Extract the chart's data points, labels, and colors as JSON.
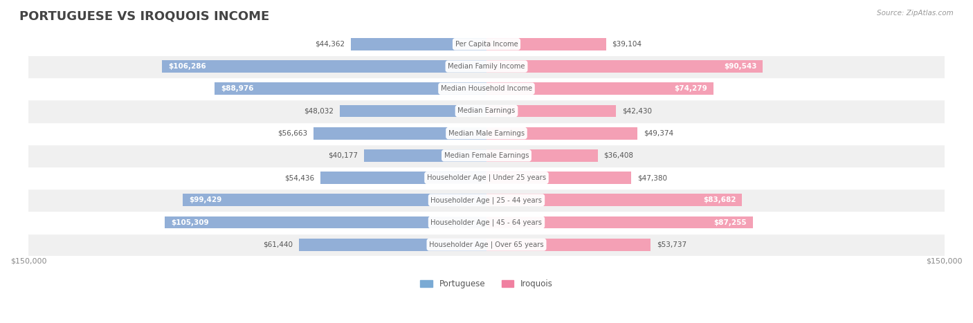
{
  "title": "PORTUGUESE VS IROQUOIS INCOME",
  "source": "Source: ZipAtlas.com",
  "categories": [
    "Per Capita Income",
    "Median Family Income",
    "Median Household Income",
    "Median Earnings",
    "Median Male Earnings",
    "Median Female Earnings",
    "Householder Age | Under 25 years",
    "Householder Age | 25 - 44 years",
    "Householder Age | 45 - 64 years",
    "Householder Age | Over 65 years"
  ],
  "portuguese": [
    44362,
    106286,
    88976,
    48032,
    56663,
    40177,
    54436,
    99429,
    105309,
    61440
  ],
  "iroquois": [
    39104,
    90543,
    74279,
    42430,
    49374,
    36408,
    47380,
    83682,
    87255,
    53737
  ],
  "max_val": 150000,
  "blue_color": "#92afd7",
  "blue_label_color": "#6585b5",
  "pink_color": "#f4a0b5",
  "pink_label_color": "#e07090",
  "blue_dark": "#5b8cc8",
  "pink_dark": "#e8638a",
  "bg_row_color": "#f0f0f0",
  "bg_alt_color": "#ffffff",
  "label_color_dark": "#555555",
  "center_label_bg": "#ffffff",
  "center_label_color": "#666666",
  "axis_label_color": "#888888",
  "title_color": "#444444",
  "legend_blue": "#7aaad4",
  "legend_pink": "#f080a0"
}
